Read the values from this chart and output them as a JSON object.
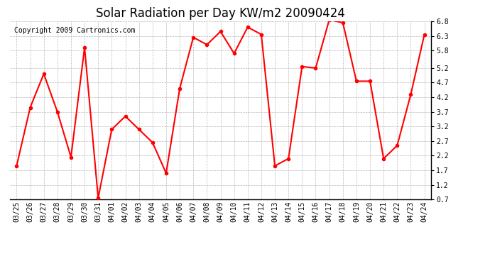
{
  "title": "Solar Radiation per Day KW/m2 20090424",
  "copyright": "Copyright 2009 Cartronics.com",
  "dates": [
    "03/25",
    "03/26",
    "03/27",
    "03/28",
    "03/29",
    "03/30",
    "03/31",
    "04/01",
    "04/02",
    "04/03",
    "04/04",
    "04/05",
    "04/06",
    "04/07",
    "04/08",
    "04/09",
    "04/10",
    "04/11",
    "04/12",
    "04/13",
    "04/14",
    "04/15",
    "04/16",
    "04/17",
    "04/18",
    "04/19",
    "04/20",
    "04/21",
    "04/22",
    "04/23",
    "04/24"
  ],
  "values": [
    1.85,
    3.85,
    5.0,
    3.7,
    2.15,
    5.9,
    0.75,
    3.1,
    3.55,
    3.1,
    2.65,
    1.6,
    4.5,
    6.25,
    6.0,
    6.45,
    5.7,
    6.6,
    6.35,
    1.85,
    2.1,
    5.25,
    5.2,
    6.85,
    6.75,
    4.75,
    4.75,
    2.1,
    2.55,
    4.3,
    6.35
  ],
  "line_color": "#ff0000",
  "marker": "o",
  "marker_size": 3,
  "marker_color": "#ff0000",
  "bg_color": "#ffffff",
  "plot_bg_color": "#ffffff",
  "grid_color": "#bbbbbb",
  "ylim": [
    0.7,
    6.8
  ],
  "yticks": [
    0.7,
    1.2,
    1.7,
    2.2,
    2.7,
    3.2,
    3.7,
    4.2,
    4.7,
    5.2,
    5.8,
    6.3,
    6.8
  ],
  "title_fontsize": 12,
  "copyright_fontsize": 7,
  "tick_fontsize": 7,
  "line_width": 1.5
}
